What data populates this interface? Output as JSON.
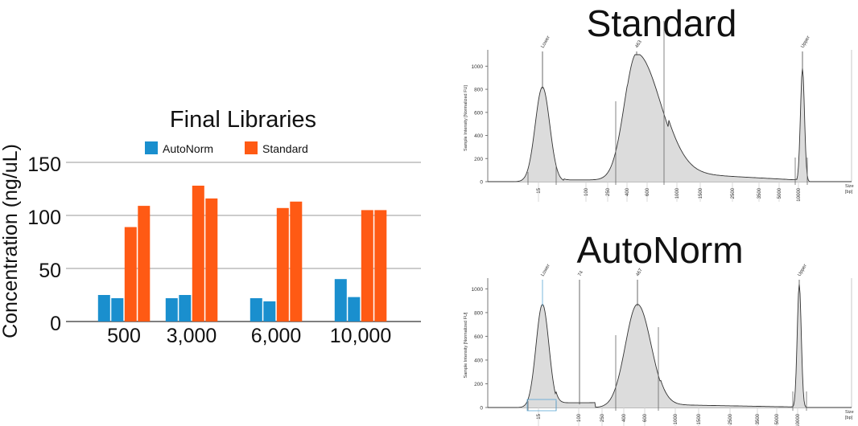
{
  "chart_data": [
    {
      "type": "bar",
      "title": "Final Libraries",
      "ylabel": "Concentration (ng/uL)",
      "xlabel": "",
      "ylim": [
        0,
        150
      ],
      "yticks": [
        0,
        50,
        100,
        150
      ],
      "grid": true,
      "legend_position": "top",
      "categories": [
        "500",
        "3,000",
        "6,000",
        "10,000"
      ],
      "series": [
        {
          "name": "AutoNorm",
          "color": "#1a8fce",
          "values": [
            [
              25,
              22
            ],
            [
              22,
              25
            ],
            [
              22,
              19
            ],
            [
              40,
              23
            ]
          ]
        },
        {
          "name": "Standard",
          "color": "#ff5a14",
          "values": [
            [
              89,
              109
            ],
            [
              128,
              116
            ],
            [
              107,
              113
            ],
            [
              105,
              105
            ]
          ]
        }
      ]
    },
    {
      "type": "line",
      "title": "Standard",
      "ylabel": "Sample Intensity [Normalized FU]",
      "xlabel": "Size [bp]",
      "ylim": [
        0,
        1100
      ],
      "yticks": [
        0,
        200,
        400,
        600,
        800,
        1000
      ],
      "xticks": [
        "15",
        "100",
        "250",
        "400",
        "600",
        "1000",
        "1500",
        "2500",
        "3500",
        "5000",
        "10000"
      ],
      "peaks": [
        {
          "label": "Lower",
          "height": 820
        },
        {
          "label": "463",
          "height": 1110
        },
        {
          "label": "Upper",
          "height": 980
        }
      ]
    },
    {
      "type": "line",
      "title": "AutoNorm",
      "ylabel": "Sample Intensity [Normalized FU]",
      "xlabel": "Size [bp]",
      "ylim": [
        0,
        1050
      ],
      "yticks": [
        0,
        200,
        400,
        600,
        800,
        1000
      ],
      "xticks": [
        "15",
        "100",
        "250",
        "400",
        "600",
        "1000",
        "1500",
        "2500",
        "3500",
        "5000",
        "10000"
      ],
      "peaks": [
        {
          "label": "Lower",
          "height": 870,
          "color": "#5aa7d6"
        },
        {
          "label": "74",
          "height": 40
        },
        {
          "label": "467",
          "height": 870
        },
        {
          "label": "Upper",
          "height": 1040
        }
      ]
    }
  ]
}
